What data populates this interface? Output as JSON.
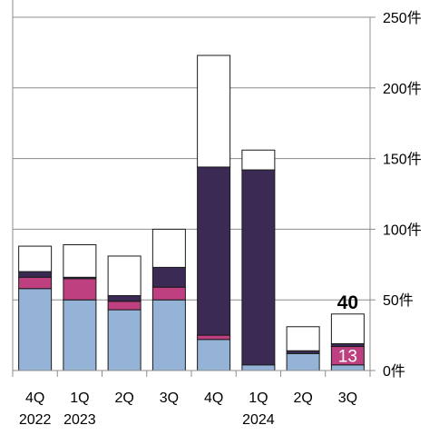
{
  "chart_data": {
    "type": "bar",
    "stacked": true,
    "categories": [
      "4Q",
      "1Q",
      "2Q",
      "3Q",
      "4Q",
      "1Q",
      "2Q",
      "3Q"
    ],
    "year_labels": [
      {
        "category_index": 0,
        "text": "2022"
      },
      {
        "category_index": 1,
        "text": "2023"
      },
      {
        "category_index": 5,
        "text": "2024"
      }
    ],
    "y_ticks": [
      "0件",
      "50件",
      "100件",
      "150件",
      "200件",
      "250件"
    ],
    "ylim": [
      0,
      250
    ],
    "y_axis_position": "right",
    "grid": true,
    "series": [
      {
        "color": "#95b3d7",
        "values": [
          58,
          50,
          43,
          50,
          22,
          4,
          12,
          4
        ]
      },
      {
        "color": "#bf4080",
        "values": [
          8,
          15,
          6,
          9,
          3,
          0,
          0,
          13
        ]
      },
      {
        "color": "#3b2a54",
        "values": [
          4,
          1,
          4,
          14,
          119,
          138,
          2,
          2
        ]
      },
      {
        "color": "#ffffff",
        "values": [
          18,
          23,
          28,
          27,
          79,
          14,
          17,
          21
        ]
      }
    ],
    "annotations": [
      {
        "category_index": 7,
        "text": "40",
        "position": "above-bar"
      },
      {
        "category_index": 7,
        "text": "13",
        "position": "inside-segment-2"
      }
    ]
  }
}
